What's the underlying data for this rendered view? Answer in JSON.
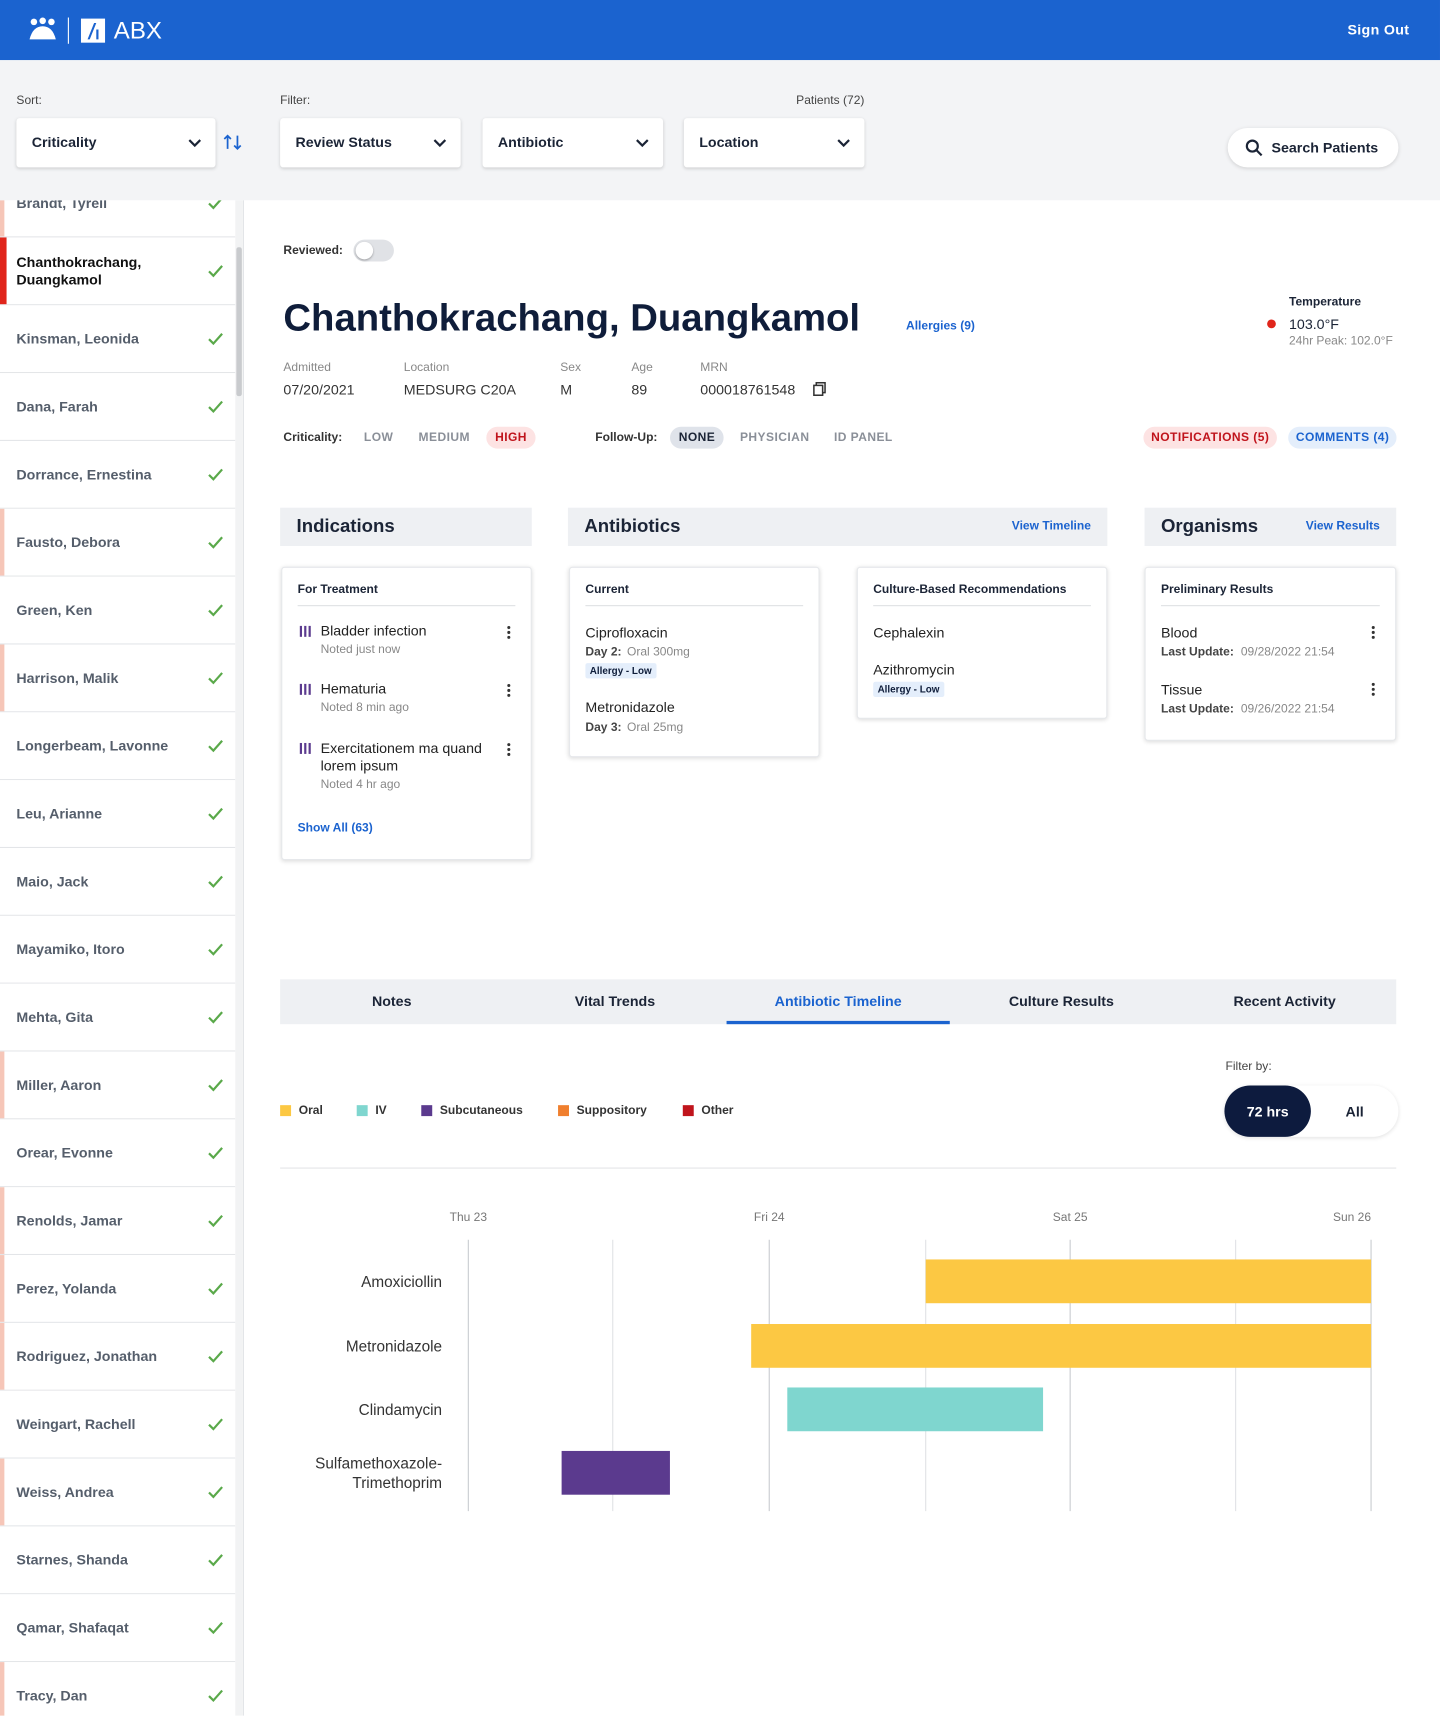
{
  "header": {
    "brand": "ABX",
    "sign_out": "Sign Out"
  },
  "toolbar": {
    "sort_label": "Sort:",
    "sort": "Criticality",
    "filter_label": "Filter:",
    "filters": [
      "Review Status",
      "Antibiotic",
      "Location"
    ],
    "patient_count": "Patients (72)",
    "search": "Search Patients"
  },
  "patients": [
    {
      "name": "Brandt, Tyrell",
      "stripe": "#f6c6b8"
    },
    {
      "name": "Chanthokrachang, Duangkamol",
      "stripe": "#e0251b",
      "selected": true
    },
    {
      "name": "Kinsman, Leonida"
    },
    {
      "name": "Dana, Farah"
    },
    {
      "name": "Dorrance, Ernestina"
    },
    {
      "name": "Fausto, Debora",
      "stripe": "#f6c6b8"
    },
    {
      "name": "Green, Ken"
    },
    {
      "name": "Harrison, Malik",
      "stripe": "#f6c6b8"
    },
    {
      "name": "Longerbeam, Lavonne"
    },
    {
      "name": "Leu, Arianne"
    },
    {
      "name": "Maio, Jack"
    },
    {
      "name": "Mayamiko, Itoro"
    },
    {
      "name": "Mehta, Gita"
    },
    {
      "name": "Miller, Aaron",
      "stripe": "#f6c6b8"
    },
    {
      "name": "Orear, Evonne"
    },
    {
      "name": "Renolds, Jamar",
      "stripe": "#f6c6b8"
    },
    {
      "name": "Perez, Yolanda",
      "stripe": "#f6c6b8"
    },
    {
      "name": "Rodriguez, Jonathan",
      "stripe": "#f6c6b8"
    },
    {
      "name": "Weingart, Rachell"
    },
    {
      "name": "Weiss, Andrea",
      "stripe": "#f6c6b8"
    },
    {
      "name": "Starnes, Shanda"
    },
    {
      "name": "Qamar, Shafaqat"
    },
    {
      "name": "Tracy, Dan",
      "stripe": "#f6c6b8"
    }
  ],
  "patient": {
    "reviewed_label": "Reviewed:",
    "name": "Chanthokrachang, Duangkamol",
    "allergies": "Allergies (9)",
    "temperature": {
      "label": "Temperature",
      "value": "103.0°F",
      "peak": "24hr Peak: 102.0°F"
    },
    "fields": [
      {
        "label": "Admitted",
        "value": "07/20/2021"
      },
      {
        "label": "Location",
        "value": "MEDSURG C20A"
      },
      {
        "label": "Sex",
        "value": "M"
      },
      {
        "label": "Age",
        "value": "89"
      },
      {
        "label": "MRN",
        "value": "000018761548"
      }
    ],
    "criticality": {
      "label": "Criticality:",
      "options": [
        {
          "label": "LOW"
        },
        {
          "label": "MEDIUM"
        },
        {
          "label": "HIGH",
          "active": true
        }
      ]
    },
    "follow_up": {
      "label": "Follow-Up:",
      "options": [
        {
          "label": "NONE",
          "active": true
        },
        {
          "label": "PHYSICIAN"
        },
        {
          "label": "ID PANEL"
        }
      ]
    },
    "notifications": "NOTIFICATIONS (5)",
    "comments": "COMMENTS (4)"
  },
  "indications": {
    "title": "Indications",
    "card_title": "For Treatment",
    "items": [
      {
        "label": "Bladder infection",
        "noted": "Noted just now"
      },
      {
        "label": "Hematuria",
        "noted": "Noted 8 min ago"
      },
      {
        "label": "Exercitationem ma quand lorem ipsum",
        "noted": "Noted 4 hr ago"
      }
    ],
    "show_all": "Show All (63)"
  },
  "antibiotics": {
    "title": "Antibiotics",
    "link": "View Timeline",
    "current": {
      "title": "Current",
      "items": [
        {
          "drug": "Ciprofloxacin",
          "day": "Day 2:",
          "dose": "Oral 300mg",
          "tag": "Allergy - Low"
        },
        {
          "drug": "Metronidazole",
          "day": "Day 3:",
          "dose": "Oral 25mg"
        }
      ]
    },
    "recommendations": {
      "title": "Culture-Based Recommendations",
      "items": [
        {
          "drug": "Cephalexin"
        },
        {
          "drug": "Azithromycin",
          "tag": "Allergy - Low"
        }
      ]
    }
  },
  "organisms": {
    "title": "Organisms",
    "link": "View Results",
    "card_title": "Preliminary Results",
    "items": [
      {
        "name": "Blood",
        "update_label": "Last Update:",
        "update": "09/28/2022 21:54"
      },
      {
        "name": "Tissue",
        "update_label": "Last Update:",
        "update": "09/26/2022 21:54"
      }
    ]
  },
  "tabs": [
    {
      "label": "Notes"
    },
    {
      "label": "Vital Trends"
    },
    {
      "label": "Antibiotic Timeline",
      "active": true
    },
    {
      "label": "Culture Results"
    },
    {
      "label": "Recent Activity"
    }
  ],
  "timeline": {
    "filter_label": "Filter by:",
    "filter_options": [
      {
        "label": "72 hrs",
        "active": true
      },
      {
        "label": "All"
      }
    ],
    "legend": [
      {
        "name": "Oral",
        "color": "#fcc843"
      },
      {
        "name": "IV",
        "color": "#7fd6cf"
      },
      {
        "name": "Subcutaneous",
        "color": "#5b3a8e"
      },
      {
        "name": "Suppository",
        "color": "#f07f2e"
      },
      {
        "name": "Other",
        "color": "#c0141c"
      }
    ],
    "chart_data": {
      "type": "gantt",
      "xlim": [
        0,
        3
      ],
      "xticks": [
        {
          "value": 0,
          "label": "Thu 23"
        },
        {
          "value": 1,
          "label": "Fri 24"
        },
        {
          "value": 2,
          "label": "Sat 25"
        },
        {
          "value": 3,
          "label": "Sun 26"
        }
      ],
      "minor_xticks": [
        0.48,
        1.52,
        2.55
      ],
      "categories": [
        "Amoxiciollin",
        "Metronidazole",
        "Clindamycin",
        "Sulfamethoxazole-Trimethoprim"
      ],
      "bars": [
        {
          "start": 1.52,
          "end": 3,
          "color": "#fcc843"
        },
        {
          "start": 0.94,
          "end": 3,
          "color": "#fcc843"
        },
        {
          "start": 1.06,
          "end": 1.91,
          "color": "#7fd6cf"
        },
        {
          "start": 0.31,
          "end": 0.67,
          "color": "#5b3a8e"
        }
      ]
    }
  }
}
